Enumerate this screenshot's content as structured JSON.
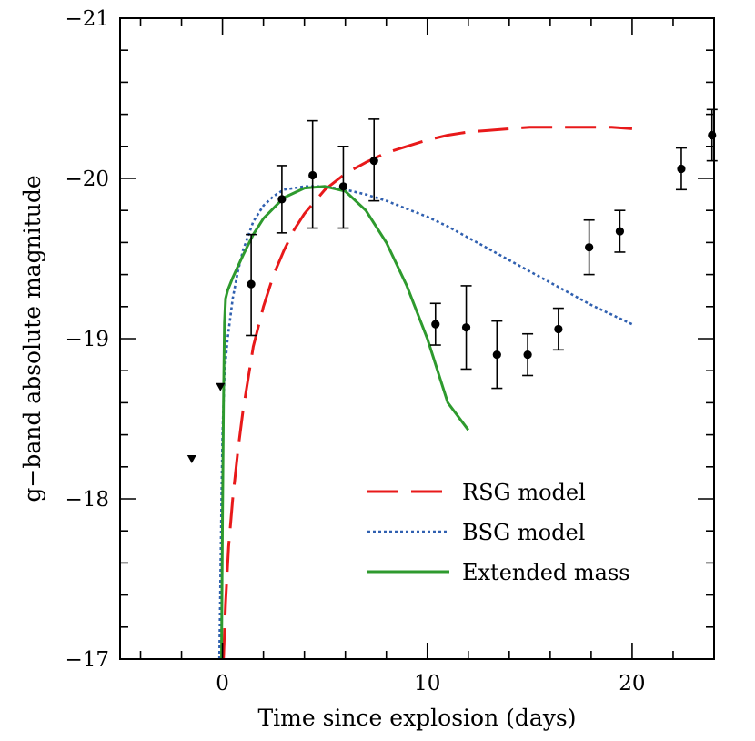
{
  "chart_data": {
    "type": "scatter",
    "xlabel": "Time since explosion (days)",
    "ylabel": "g−band absolute magnitude",
    "xlim": [
      -5,
      24
    ],
    "ylim": [
      -21,
      -17
    ],
    "y_inverted": true,
    "x_ticks": [
      0,
      10,
      20
    ],
    "y_ticks": [
      -21,
      -20,
      -19,
      -18,
      -17
    ],
    "x_tick_labels": [
      "0",
      "10",
      "20"
    ],
    "y_tick_labels": [
      "−21",
      "−20",
      "−19",
      "−18",
      "−17"
    ],
    "grid": false,
    "legend_position": "bottom-right",
    "observations": [
      {
        "x": 1.4,
        "y": -19.34,
        "err_lo": 0.32,
        "err_hi": 0.31
      },
      {
        "x": 2.9,
        "y": -19.87,
        "err_lo": 0.21,
        "err_hi": 0.21
      },
      {
        "x": 4.4,
        "y": -20.02,
        "err_lo": 0.33,
        "err_hi": 0.34
      },
      {
        "x": 5.9,
        "y": -19.95,
        "err_lo": 0.26,
        "err_hi": 0.25
      },
      {
        "x": 7.4,
        "y": -20.11,
        "err_lo": 0.25,
        "err_hi": 0.26
      },
      {
        "x": 10.4,
        "y": -19.09,
        "err_lo": 0.13,
        "err_hi": 0.13
      },
      {
        "x": 11.9,
        "y": -19.07,
        "err_lo": 0.26,
        "err_hi": 0.26
      },
      {
        "x": 13.4,
        "y": -18.9,
        "err_lo": 0.21,
        "err_hi": 0.21
      },
      {
        "x": 14.9,
        "y": -18.9,
        "err_lo": 0.13,
        "err_hi": 0.13
      },
      {
        "x": 16.4,
        "y": -19.06,
        "err_lo": 0.13,
        "err_hi": 0.13
      },
      {
        "x": 17.9,
        "y": -19.57,
        "err_lo": 0.17,
        "err_hi": 0.17
      },
      {
        "x": 19.4,
        "y": -19.67,
        "err_lo": 0.13,
        "err_hi": 0.13
      },
      {
        "x": 22.4,
        "y": -20.06,
        "err_lo": 0.13,
        "err_hi": 0.13
      },
      {
        "x": 23.9,
        "y": -20.27,
        "err_lo": 0.16,
        "err_hi": 0.16
      }
    ],
    "upper_limits": [
      {
        "x": -1.5,
        "y": -18.25
      },
      {
        "x": -0.1,
        "y": -18.7
      }
    ],
    "series": [
      {
        "name": "RSG model",
        "color": "#e8191a",
        "style": "dashed",
        "x": [
          0.05,
          0.15,
          0.3,
          0.5,
          0.75,
          1.0,
          1.5,
          2.0,
          2.5,
          3.0,
          3.5,
          4.0,
          5.0,
          6.0,
          7.0,
          8.0,
          9.0,
          10.0,
          11.0,
          12.0,
          13.0,
          14.0,
          15.0,
          16.0,
          17.0,
          18.0,
          19.0,
          20.0
        ],
        "y": [
          -17.0,
          -17.35,
          -17.7,
          -18.0,
          -18.3,
          -18.55,
          -18.95,
          -19.2,
          -19.4,
          -19.55,
          -19.68,
          -19.78,
          -19.93,
          -20.03,
          -20.1,
          -20.16,
          -20.2,
          -20.24,
          -20.27,
          -20.29,
          -20.3,
          -20.31,
          -20.32,
          -20.32,
          -20.32,
          -20.32,
          -20.32,
          -20.31
        ]
      },
      {
        "name": "BSG model",
        "color": "#3060b0",
        "style": "dotted",
        "x": [
          -0.15,
          -0.05,
          0.0,
          0.1,
          0.25,
          0.5,
          0.75,
          1.0,
          1.5,
          2.0,
          2.5,
          3.0,
          3.5,
          4.0,
          5.0,
          6.0,
          7.0,
          8.0,
          9.0,
          10.0,
          11.0,
          12.0,
          13.0,
          14.0,
          15.0,
          16.0,
          17.0,
          18.0,
          19.0,
          20.0
        ],
        "y": [
          -17.0,
          -18.0,
          -18.4,
          -18.78,
          -19.0,
          -19.25,
          -19.42,
          -19.55,
          -19.73,
          -19.83,
          -19.89,
          -19.93,
          -19.94,
          -19.95,
          -19.95,
          -19.93,
          -19.9,
          -19.86,
          -19.81,
          -19.76,
          -19.7,
          -19.63,
          -19.56,
          -19.49,
          -19.42,
          -19.35,
          -19.28,
          -19.21,
          -19.15,
          -19.09
        ]
      },
      {
        "name": "Extended mass",
        "color": "#2e9a2e",
        "style": "solid",
        "x": [
          -0.05,
          0.0,
          0.05,
          0.1,
          0.15,
          0.25,
          0.5,
          1.0,
          1.5,
          2.0,
          3.0,
          4.0,
          5.0,
          6.0,
          7.0,
          8.0,
          9.0,
          10.0,
          11.0,
          12.0
        ],
        "y": [
          -17.0,
          -17.9,
          -18.6,
          -19.1,
          -19.25,
          -19.3,
          -19.38,
          -19.52,
          -19.65,
          -19.75,
          -19.88,
          -19.94,
          -19.95,
          -19.92,
          -19.8,
          -19.6,
          -19.33,
          -19.0,
          -18.6,
          -18.43
        ]
      }
    ]
  }
}
